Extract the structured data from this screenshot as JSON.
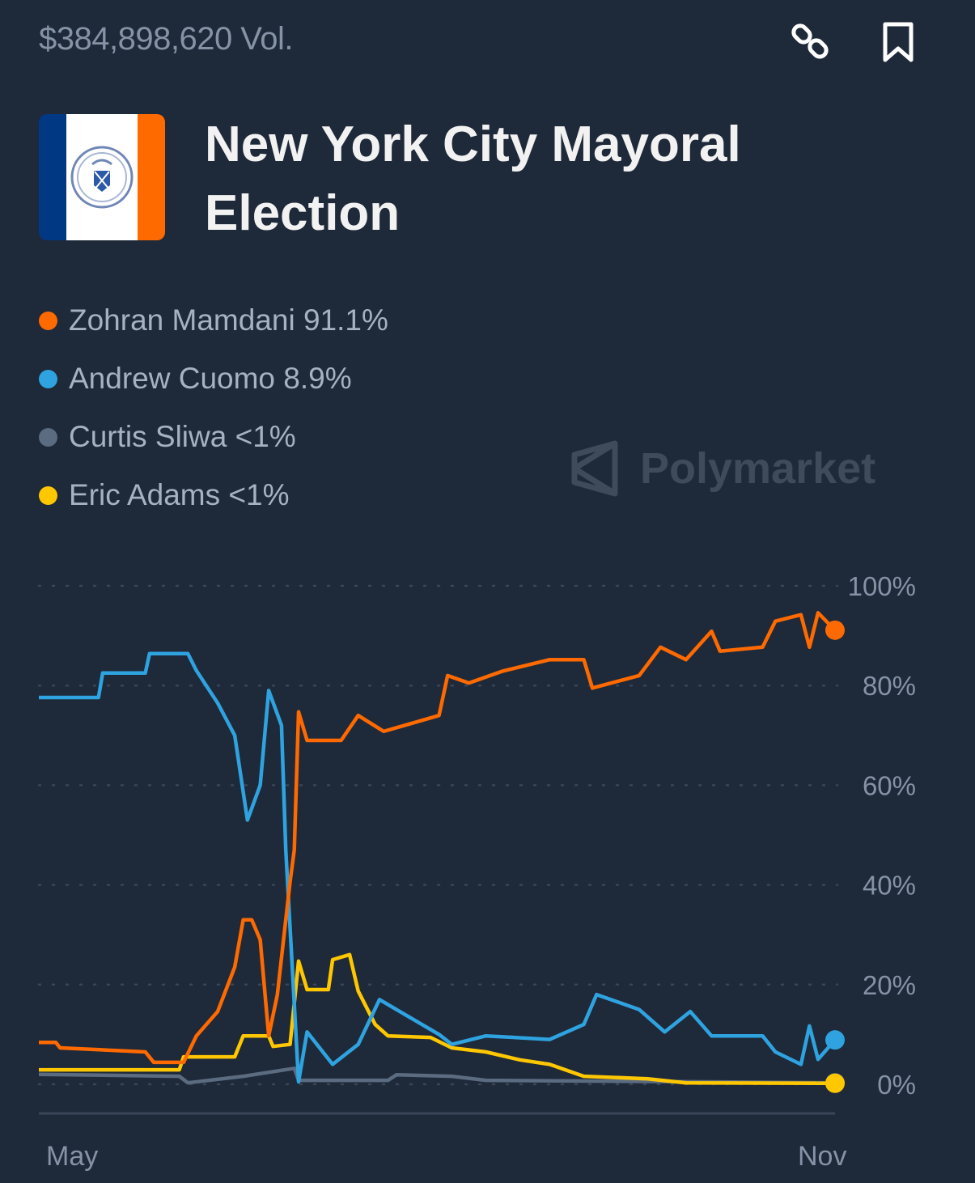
{
  "header": {
    "volume": "$384,898,620 Vol.",
    "link_icon": "link-icon",
    "bookmark_icon": "bookmark-icon"
  },
  "market": {
    "title": "New York City Mayoral Election",
    "flag_colors": [
      "#003884",
      "#ffffff",
      "#ff6a00"
    ]
  },
  "legend": [
    {
      "label": "Zohran Mamdani 91.1%",
      "color": "#ff6a00"
    },
    {
      "label": "Andrew Cuomo 8.9%",
      "color": "#2fa3e0"
    },
    {
      "label": "Curtis Sliwa <1%",
      "color": "#5b6b80"
    },
    {
      "label": "Eric Adams <1%",
      "color": "#ffc700"
    }
  ],
  "watermark": "Polymarket",
  "chart_data": {
    "type": "line",
    "x_ticks": [
      "May",
      "Nov"
    ],
    "x_range": [
      "05-01",
      "11-04"
    ],
    "y_ticks": [
      "0%",
      "20%",
      "40%",
      "60%",
      "80%",
      "100%"
    ],
    "ylim": [
      0,
      100
    ],
    "grid": "dotted horizontal",
    "y_axis_position": "right",
    "series": [
      {
        "name": "Zohran Mamdani",
        "color": "#ff6a00",
        "points": [
          [
            "05-01",
            8.4
          ],
          [
            "05-05",
            8.4
          ],
          [
            "05-06",
            7.3
          ],
          [
            "05-26",
            6.5
          ],
          [
            "05-28",
            4.4
          ],
          [
            "06-04",
            4.4
          ],
          [
            "06-07",
            9.7
          ],
          [
            "06-12",
            14.6
          ],
          [
            "06-16",
            23.5
          ],
          [
            "06-18",
            33
          ],
          [
            "06-20",
            33
          ],
          [
            "06-22",
            29
          ],
          [
            "06-24",
            9.7
          ],
          [
            "06-26",
            17.9
          ],
          [
            "06-29",
            40.6
          ],
          [
            "06-30",
            47
          ],
          [
            "07-01",
            74.7
          ],
          [
            "07-03",
            69
          ],
          [
            "07-11",
            69
          ],
          [
            "07-15",
            74
          ],
          [
            "07-21",
            70.8
          ],
          [
            "08-03",
            74
          ],
          [
            "08-05",
            82
          ],
          [
            "08-10",
            80.5
          ],
          [
            "08-18",
            82.9
          ],
          [
            "08-29",
            85.2
          ],
          [
            "09-06",
            85.2
          ],
          [
            "09-08",
            79.5
          ],
          [
            "09-19",
            82
          ],
          [
            "09-24",
            87.7
          ],
          [
            "09-30",
            85.2
          ],
          [
            "10-06",
            90.9
          ],
          [
            "10-08",
            86.9
          ],
          [
            "10-18",
            87.7
          ],
          [
            "10-21",
            92.9
          ],
          [
            "10-27",
            94.2
          ],
          [
            "10-29",
            87.7
          ],
          [
            "10-31",
            94.6
          ],
          [
            "11-04",
            91.1
          ]
        ]
      },
      {
        "name": "Andrew Cuomo",
        "color": "#2fa3e0",
        "points": [
          [
            "05-01",
            77.6
          ],
          [
            "05-15",
            77.6
          ],
          [
            "05-16",
            82.5
          ],
          [
            "05-26",
            82.5
          ],
          [
            "05-27",
            86.4
          ],
          [
            "06-05",
            86.4
          ],
          [
            "06-07",
            83
          ],
          [
            "06-12",
            76.5
          ],
          [
            "06-16",
            70
          ],
          [
            "06-19",
            53
          ],
          [
            "06-22",
            60
          ],
          [
            "06-24",
            79
          ],
          [
            "06-27",
            72
          ],
          [
            "06-28",
            47
          ],
          [
            "07-01",
            0.5
          ],
          [
            "07-03",
            10.5
          ],
          [
            "07-09",
            4
          ],
          [
            "07-15",
            8
          ],
          [
            "07-20",
            17
          ],
          [
            "07-26",
            14
          ],
          [
            "08-03",
            10
          ],
          [
            "08-06",
            8
          ],
          [
            "08-14",
            9.7
          ],
          [
            "08-29",
            9
          ],
          [
            "09-06",
            12
          ],
          [
            "09-09",
            18
          ],
          [
            "09-19",
            15
          ],
          [
            "09-25",
            10.5
          ],
          [
            "10-01",
            14.6
          ],
          [
            "10-06",
            9.7
          ],
          [
            "10-18",
            9.7
          ],
          [
            "10-21",
            6.5
          ],
          [
            "10-27",
            4
          ],
          [
            "10-29",
            11.7
          ],
          [
            "10-31",
            5
          ],
          [
            "11-04",
            8.9
          ]
        ]
      },
      {
        "name": "Curtis Sliwa",
        "color": "#5b6b80",
        "points": [
          [
            "05-01",
            2
          ],
          [
            "06-03",
            1.6
          ],
          [
            "06-05",
            0.3
          ],
          [
            "06-18",
            1.6
          ],
          [
            "06-30",
            3.2
          ],
          [
            "07-01",
            0.8
          ],
          [
            "07-22",
            0.8
          ],
          [
            "07-24",
            1.9
          ],
          [
            "08-06",
            1.6
          ],
          [
            "08-14",
            0.8
          ],
          [
            "11-04",
            0.3
          ]
        ]
      },
      {
        "name": "Eric Adams",
        "color": "#ffc700",
        "points": [
          [
            "05-01",
            2.9
          ],
          [
            "06-03",
            2.9
          ],
          [
            "06-04",
            5.5
          ],
          [
            "06-16",
            5.5
          ],
          [
            "06-18",
            9.7
          ],
          [
            "06-24",
            9.7
          ],
          [
            "06-25",
            7.6
          ],
          [
            "06-29",
            8
          ],
          [
            "07-01",
            24.7
          ],
          [
            "07-03",
            19
          ],
          [
            "07-08",
            19
          ],
          [
            "07-09",
            25
          ],
          [
            "07-13",
            26
          ],
          [
            "07-15",
            18.7
          ],
          [
            "07-19",
            12
          ],
          [
            "07-22",
            9.7
          ],
          [
            "08-01",
            9.4
          ],
          [
            "08-06",
            7.3
          ],
          [
            "08-14",
            6.5
          ],
          [
            "08-22",
            4.9
          ],
          [
            "08-29",
            4
          ],
          [
            "09-06",
            1.6
          ],
          [
            "09-21",
            1.1
          ],
          [
            "09-30",
            0.3
          ],
          [
            "11-04",
            0.2
          ]
        ]
      }
    ]
  }
}
